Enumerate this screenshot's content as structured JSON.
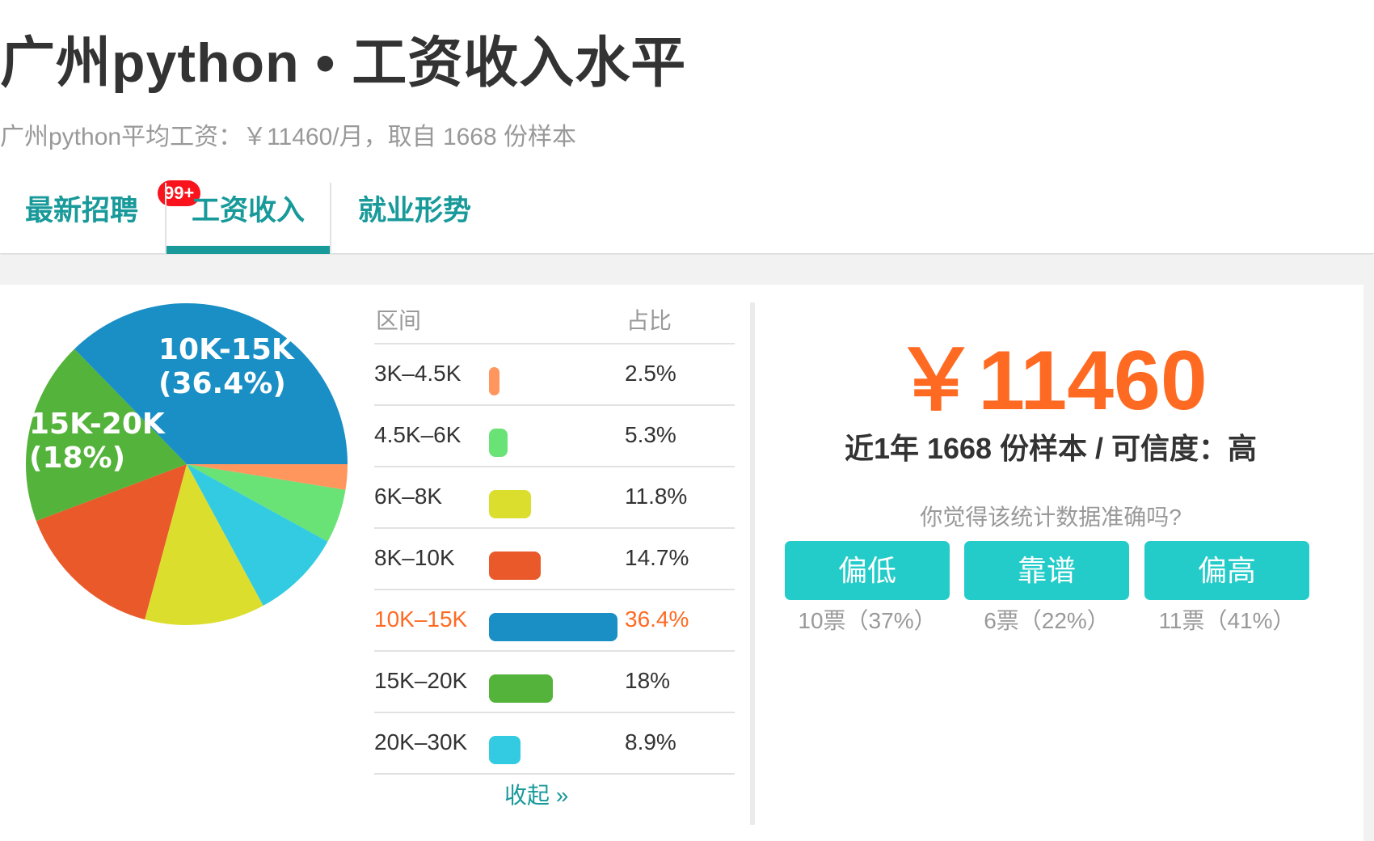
{
  "header": {
    "title": "广州python • 工资收入水平",
    "subtitle": "广州python平均工资：￥11460/月，取自 1668 份样本"
  },
  "tabs": [
    {
      "label": "最新招聘",
      "badge": "99+"
    },
    {
      "label": "工资收入",
      "active": true
    },
    {
      "label": "就业形势"
    }
  ],
  "table": {
    "col_range": "区间",
    "col_share": "占比",
    "collapse_label": "收起 »",
    "rows": [
      {
        "range": "3K–4.5K",
        "percent": "2.5%",
        "value": 2.5,
        "color": "#fe965e"
      },
      {
        "range": "4.5K–6K",
        "percent": "5.3%",
        "value": 5.3,
        "color": "#69e276"
      },
      {
        "range": "6K–8K",
        "percent": "11.8%",
        "value": 11.8,
        "color": "#dcde2e"
      },
      {
        "range": "8K–10K",
        "percent": "14.7%",
        "value": 14.7,
        "color": "#ea592a"
      },
      {
        "range": "10K–15K",
        "percent": "36.4%",
        "value": 36.4,
        "color": "#1a8fc5",
        "highlight": true
      },
      {
        "range": "15K–20K",
        "percent": "18%",
        "value": 18,
        "color": "#54b33a"
      },
      {
        "range": "20K–30K",
        "percent": "8.9%",
        "value": 8.9,
        "color": "#33cbe1"
      }
    ]
  },
  "chart_data": {
    "type": "pie",
    "start": "3 o'clock, clockwise",
    "slices": [
      {
        "label": "3K-4.5K",
        "value": 2.5,
        "color": "#fe965e"
      },
      {
        "label": "4.5K-6K",
        "value": 5.3,
        "color": "#69e276"
      },
      {
        "label": "20K-30K",
        "value": 8.9,
        "color": "#33cbe1"
      },
      {
        "label": "6K-8K",
        "value": 11.8,
        "color": "#dcde2e"
      },
      {
        "label": "8K-10K",
        "value": 14.7,
        "color": "#ea592a"
      },
      {
        "label": "15K-20K",
        "value": 18,
        "color": "#54b33a",
        "data_label": "15K-20K",
        "data_label2": "(18%)"
      },
      {
        "label": "10K-15K",
        "value": 36.4,
        "color": "#1a8fc5",
        "data_label": "10K-15K",
        "data_label2": "(36.4%)"
      }
    ]
  },
  "summary": {
    "price": "￥11460",
    "sample_line": "近1年 1668 份样本 / 可信度：高",
    "question": "你觉得该统计数据准确吗?",
    "votes": [
      {
        "label": "偏低",
        "count": "10票（37%）"
      },
      {
        "label": "靠谱",
        "count": "6票（22%）"
      },
      {
        "label": "偏高",
        "count": "11票（41%）"
      }
    ]
  },
  "colors": {
    "accent": "#18999a",
    "price": "#ff6a22",
    "button": "#24ccc9",
    "badge": "#f8131d"
  }
}
